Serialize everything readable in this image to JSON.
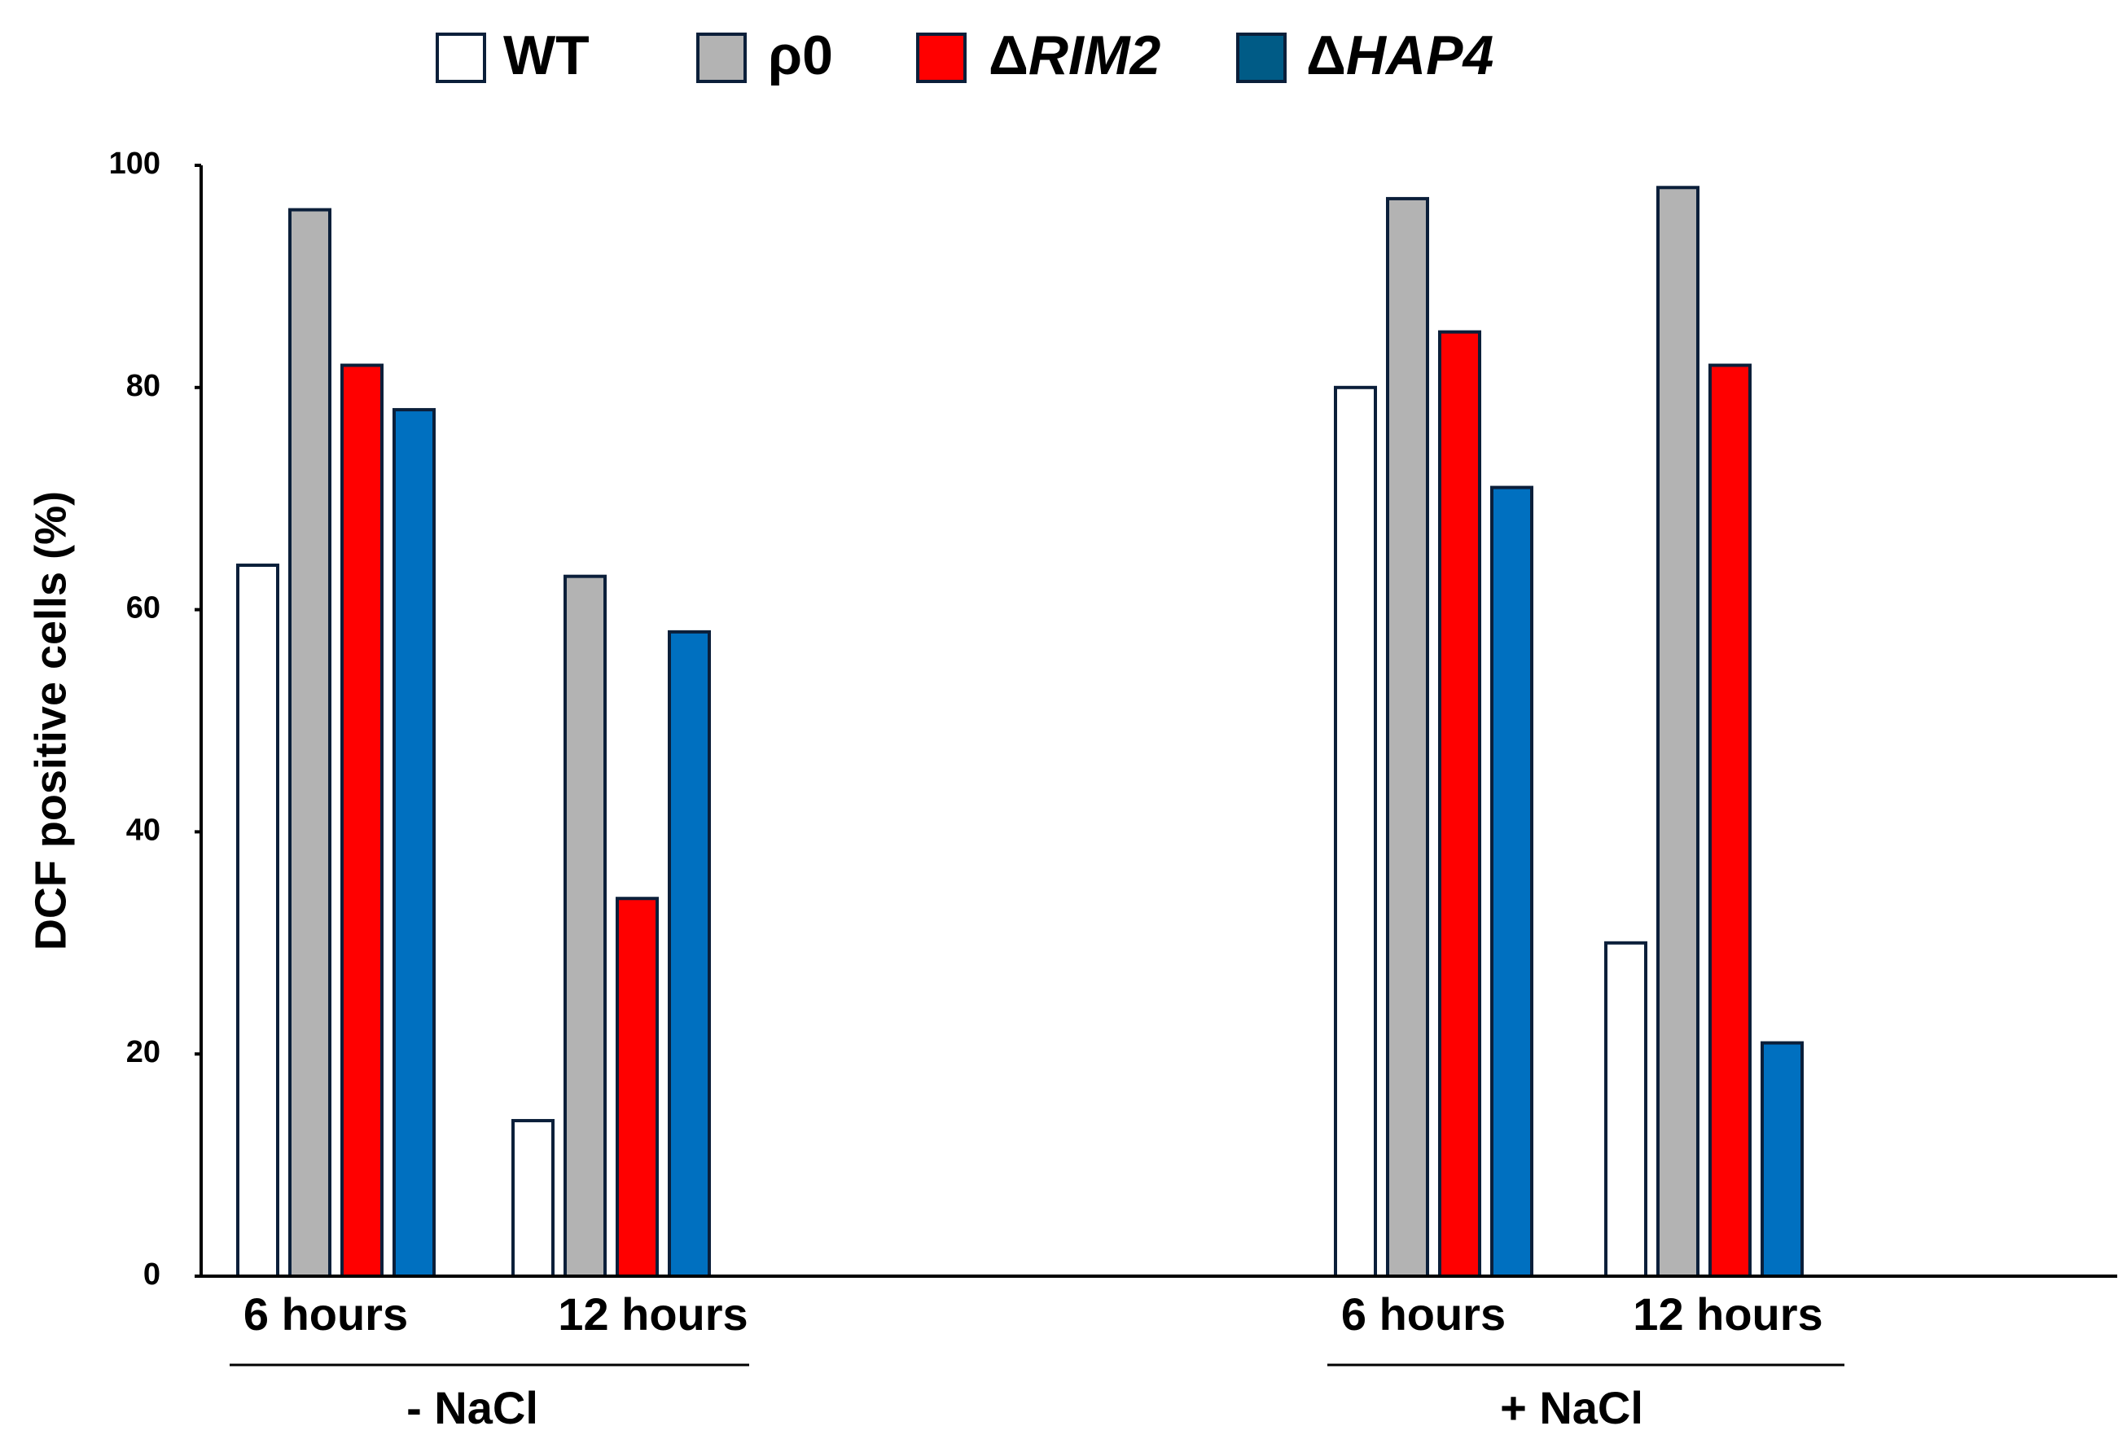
{
  "chart_data": {
    "type": "bar",
    "title": "",
    "xlabel": "",
    "ylabel": "DCF positive cells (%)",
    "ylim": [
      0,
      100
    ],
    "yticks": [
      "0",
      "20",
      "40",
      "60",
      "80",
      "100"
    ],
    "grid": false,
    "legend_position": "top",
    "groups": [
      {
        "label": "- NaCl",
        "categories": [
          "6 hours",
          "12 hours"
        ]
      },
      {
        "label": "+ NaCl",
        "categories": [
          "6 hours",
          "12 hours"
        ]
      }
    ],
    "series": [
      {
        "name": "WT",
        "prefix": "",
        "name_italic": false,
        "color": "#ffffff",
        "stroke": "#0b1f3a",
        "values": [
          64,
          14,
          80,
          30
        ]
      },
      {
        "name": "ρ0",
        "prefix": "",
        "name_italic": false,
        "color": "#b3b3b3",
        "stroke": "#0b1f3a",
        "values": [
          96,
          63,
          97,
          98
        ]
      },
      {
        "name": "RIM2",
        "prefix": "Δ",
        "name_italic": true,
        "color": "#ff0000",
        "stroke": "#0b1f3a",
        "values": [
          82,
          34,
          85,
          82
        ]
      },
      {
        "name": "HAP4",
        "prefix": "Δ",
        "name_italic": true,
        "color": "#0070c0",
        "legend_color": "#005b86",
        "stroke": "#0b1f3a",
        "values": [
          78,
          58,
          71,
          21
        ]
      }
    ]
  }
}
